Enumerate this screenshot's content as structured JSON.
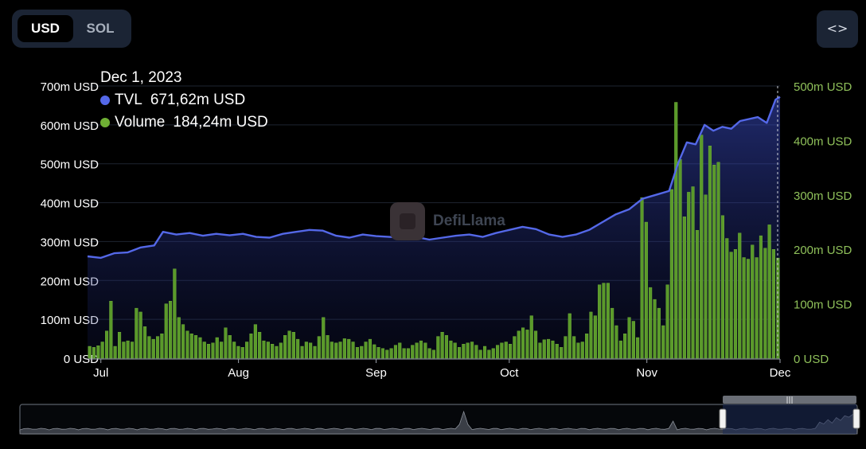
{
  "currency_toggle": {
    "options": [
      "USD",
      "SOL"
    ],
    "selected": "USD"
  },
  "embed_button": {
    "label": "<>"
  },
  "tooltip": {
    "date": "Dec 1, 2023",
    "tvl_label": "TVL",
    "tvl_value": "671,62m USD",
    "volume_label": "Volume",
    "volume_value": "184,24m USD"
  },
  "watermark": "DefiLlama",
  "colors": {
    "tvl": "#5468e8",
    "volume": "#6fb034",
    "background": "#000000"
  },
  "chart_data": {
    "type": "line+bar",
    "x_ticks": [
      "Jul",
      "Aug",
      "Sep",
      "Oct",
      "Nov",
      "Dec"
    ],
    "left_axis": {
      "label_ticks": [
        "0 USD",
        "100m USD",
        "200m USD",
        "300m USD",
        "400m USD",
        "500m USD",
        "600m USD",
        "700m USD"
      ],
      "range_m": [
        0,
        700
      ]
    },
    "right_axis": {
      "label_ticks": [
        "0 USD",
        "100m USD",
        "200m USD",
        "300m USD",
        "400m USD",
        "500m USD"
      ],
      "range_m": [
        0,
        500
      ]
    },
    "date_range": [
      "2023-06-28",
      "2023-12-01"
    ],
    "series": [
      {
        "name": "TVL",
        "axis": "left",
        "unit": "m USD",
        "points": [
          [
            "2023-06-28",
            262
          ],
          [
            "2023-07-01",
            258
          ],
          [
            "2023-07-04",
            270
          ],
          [
            "2023-07-07",
            272
          ],
          [
            "2023-07-10",
            285
          ],
          [
            "2023-07-13",
            290
          ],
          [
            "2023-07-15",
            325
          ],
          [
            "2023-07-18",
            318
          ],
          [
            "2023-07-21",
            322
          ],
          [
            "2023-07-24",
            315
          ],
          [
            "2023-07-27",
            320
          ],
          [
            "2023-07-30",
            316
          ],
          [
            "2023-08-02",
            320
          ],
          [
            "2023-08-05",
            312
          ],
          [
            "2023-08-08",
            310
          ],
          [
            "2023-08-11",
            320
          ],
          [
            "2023-08-14",
            325
          ],
          [
            "2023-08-17",
            330
          ],
          [
            "2023-08-20",
            328
          ],
          [
            "2023-08-23",
            315
          ],
          [
            "2023-08-26",
            310
          ],
          [
            "2023-08-29",
            318
          ],
          [
            "2023-09-01",
            314
          ],
          [
            "2023-09-04",
            312
          ],
          [
            "2023-09-07",
            310
          ],
          [
            "2023-09-10",
            312
          ],
          [
            "2023-09-13",
            305
          ],
          [
            "2023-09-16",
            310
          ],
          [
            "2023-09-19",
            315
          ],
          [
            "2023-09-22",
            318
          ],
          [
            "2023-09-25",
            312
          ],
          [
            "2023-09-28",
            322
          ],
          [
            "2023-10-01",
            330
          ],
          [
            "2023-10-04",
            338
          ],
          [
            "2023-10-07",
            332
          ],
          [
            "2023-10-10",
            318
          ],
          [
            "2023-10-13",
            312
          ],
          [
            "2023-10-16",
            318
          ],
          [
            "2023-10-19",
            330
          ],
          [
            "2023-10-22",
            350
          ],
          [
            "2023-10-25",
            370
          ],
          [
            "2023-10-28",
            383
          ],
          [
            "2023-10-31",
            410
          ],
          [
            "2023-11-03",
            420
          ],
          [
            "2023-11-06",
            430
          ],
          [
            "2023-11-08",
            500
          ],
          [
            "2023-11-10",
            555
          ],
          [
            "2023-11-12",
            550
          ],
          [
            "2023-11-14",
            600
          ],
          [
            "2023-11-16",
            585
          ],
          [
            "2023-11-18",
            595
          ],
          [
            "2023-11-20",
            590
          ],
          [
            "2023-11-22",
            610
          ],
          [
            "2023-11-24",
            615
          ],
          [
            "2023-11-26",
            620
          ],
          [
            "2023-11-28",
            605
          ],
          [
            "2023-11-30",
            665
          ],
          [
            "2023-12-01",
            672
          ]
        ]
      },
      {
        "name": "Volume",
        "axis": "right",
        "unit": "m USD",
        "values": [
          22,
          20,
          23,
          30,
          50,
          105,
          22,
          48,
          30,
          32,
          30,
          92,
          85,
          58,
          40,
          35,
          40,
          45,
          100,
          105,
          164,
          75,
          62,
          50,
          45,
          42,
          38,
          30,
          26,
          28,
          38,
          30,
          56,
          42,
          30,
          22,
          20,
          30,
          45,
          62,
          48,
          32,
          30,
          26,
          22,
          28,
          42,
          50,
          48,
          35,
          22,
          30,
          28,
          22,
          40,
          75,
          42,
          30,
          28,
          30,
          36,
          35,
          30,
          20,
          22,
          30,
          35,
          25,
          20,
          18,
          15,
          18,
          24,
          28,
          18,
          18,
          24,
          28,
          32,
          28,
          18,
          15,
          40,
          48,
          42,
          32,
          28,
          20,
          26,
          28,
          30,
          24,
          15,
          22,
          15,
          18,
          24,
          28,
          30,
          26,
          40,
          50,
          56,
          52,
          78,
          50,
          28,
          34,
          35,
          32,
          26,
          20,
          40,
          82,
          40,
          28,
          30,
          45,
          85,
          78,
          135,
          138,
          138,
          92,
          60,
          32,
          45,
          75,
          68,
          38,
          295,
          250,
          130,
          108,
          92,
          60,
          135,
          310,
          470,
          365,
          260,
          305,
          315,
          235,
          410,
          300,
          390,
          355,
          360,
          262,
          220,
          195,
          200,
          230,
          185,
          182,
          208,
          185,
          225,
          202,
          245,
          200,
          184
        ]
      }
    ],
    "hover_marker": {
      "date": "2023-12-01"
    },
    "legend": "none",
    "grid": "horizontal"
  }
}
